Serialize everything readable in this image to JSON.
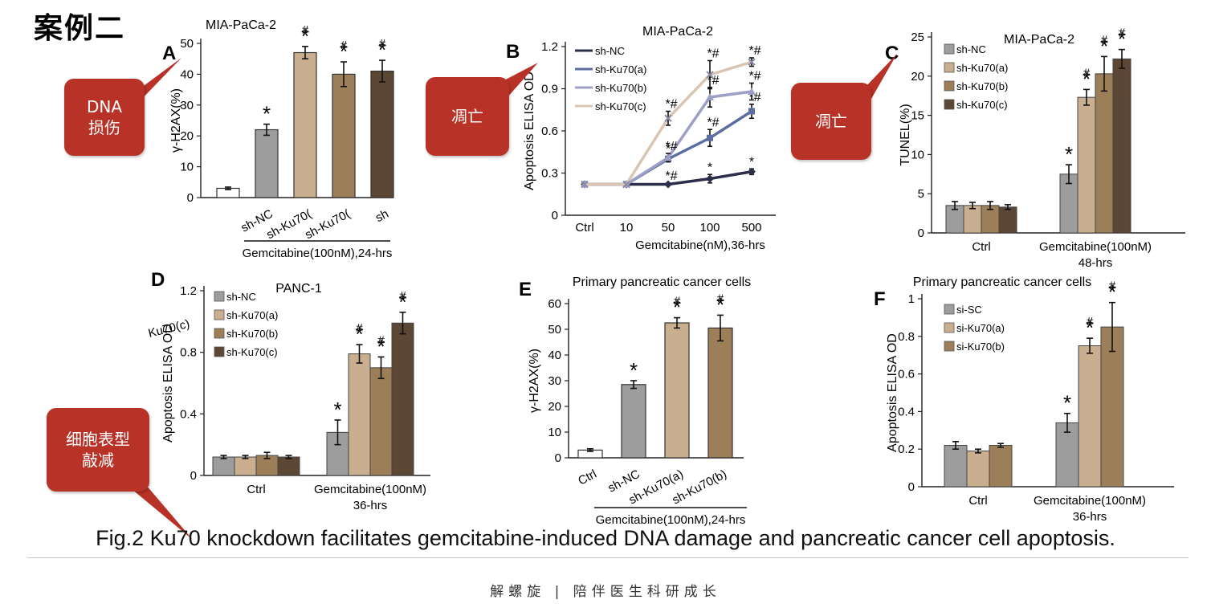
{
  "page_title": "案例二",
  "callouts": [
    {
      "id": "callout-dna-damage",
      "text": "DNA\n损伤"
    },
    {
      "id": "callout-apoptosis-b",
      "text": "凋亡"
    },
    {
      "id": "callout-apoptosis-c",
      "text": "凋亡"
    },
    {
      "id": "callout-phenotype",
      "text": "细胞表型\n敲减"
    }
  ],
  "colors": {
    "white": "#ffffff",
    "gray": "#9d9d9d",
    "tan": "#c9af8f",
    "brown": "#9c7e58",
    "dark": "#5c4634",
    "navy": "#2c2e4a",
    "blue": "#5c6ea0",
    "lilac": "#9d9fc6",
    "beige": "#d8c5b4",
    "callout": "#b83227"
  },
  "caption": "Fig.2 Ku70 knockdown facilitates gemcitabine-induced DNA damage and pancreatic cancer cell apoptosis.",
  "footer": "解螺旋 | 陪伴医生科研成长",
  "chart_data": [
    {
      "panel": "A",
      "type": "bar",
      "title": "MIA-PaCa-2",
      "ylabel": "γ-H2AX(%)",
      "xlabel": "Gemcitabine(100nM),24-hrs",
      "ylim": [
        0,
        50
      ],
      "yticks": [
        0,
        10,
        20,
        30,
        40,
        50
      ],
      "categories": [
        "",
        "sh-NC",
        "sh-Ku70(",
        "sh-Ku70(",
        "sh"
      ],
      "values": [
        3,
        22,
        47,
        40,
        41
      ],
      "errors": [
        0.4,
        1.8,
        2,
        4,
        3.5
      ],
      "colors": [
        "#ffffff",
        "#9d9d9d",
        "#c9af8f",
        "#9c7e58",
        "#5c4634"
      ],
      "marks": [
        "",
        "*",
        "*#",
        "*#",
        "*#"
      ]
    },
    {
      "panel": "B",
      "type": "line",
      "title": "MIA-PaCa-2",
      "ylabel": "Apoptosis ELISA OD",
      "xlabel": "Gemcitabine(nM),36-hrs",
      "x": [
        "Ctrl",
        "10",
        "50",
        "100",
        "500"
      ],
      "ylim": [
        0,
        1.2
      ],
      "yticks": [
        0,
        0.3,
        0.6,
        0.9,
        1.2
      ],
      "series": [
        {
          "name": "sh-NC",
          "values": [
            0.22,
            0.22,
            0.22,
            0.26,
            0.31
          ],
          "errors": [
            0.01,
            0.01,
            0.01,
            0.03,
            0.02
          ],
          "color": "#2c2e4a",
          "marker": "diamond",
          "marks": [
            "",
            "",
            "*#",
            "*",
            "*"
          ]
        },
        {
          "name": "sh-Ku70(a)",
          "values": [
            0.22,
            0.22,
            0.4,
            0.55,
            0.74
          ],
          "errors": [
            0.01,
            0.01,
            0.02,
            0.06,
            0.05
          ],
          "color": "#5c6ea0",
          "marker": "square",
          "marks": [
            "",
            "",
            "*",
            "*#",
            "*#"
          ]
        },
        {
          "name": "sh-Ku70(b)",
          "values": [
            0.22,
            0.22,
            0.41,
            0.84,
            0.88
          ],
          "errors": [
            0.01,
            0.01,
            0.03,
            0.07,
            0.06
          ],
          "color": "#9d9fc6",
          "marker": "triangle",
          "marks": [
            "",
            "",
            "*#",
            "*#",
            "*#"
          ]
        },
        {
          "name": "sh-Ku70(c)",
          "values": [
            0.22,
            0.22,
            0.69,
            1.0,
            1.09
          ],
          "errors": [
            0.01,
            0.01,
            0.05,
            0.1,
            0.03
          ],
          "color": "#d8c5b4",
          "marker": "x",
          "marks": [
            "",
            "",
            "*#",
            "*#",
            "*#"
          ]
        }
      ]
    },
    {
      "panel": "C",
      "type": "bar",
      "title": "MIA-PaCa-2",
      "ylabel": "TUNEL(%)",
      "groups": [
        "Ctrl",
        "Gemcitabine(100nM)\n48-hrs"
      ],
      "ylim": [
        0,
        25
      ],
      "yticks": [
        0,
        5,
        10,
        15,
        20,
        25
      ],
      "series": [
        {
          "name": "sh-NC",
          "color": "#9d9d9d",
          "values": [
            3.5,
            7.5
          ],
          "errors": [
            0.5,
            1.2
          ],
          "marks": [
            "",
            "*"
          ]
        },
        {
          "name": "sh-Ku70(a)",
          "color": "#c9af8f",
          "values": [
            3.5,
            17.3
          ],
          "errors": [
            0.4,
            1.0
          ],
          "marks": [
            "",
            "*#"
          ]
        },
        {
          "name": "sh-Ku70(b)",
          "color": "#9c7e58",
          "values": [
            3.5,
            20.3
          ],
          "errors": [
            0.5,
            2.2
          ],
          "marks": [
            "",
            "*#"
          ]
        },
        {
          "name": "sh-Ku70(c)",
          "color": "#5c4634",
          "values": [
            3.3,
            22.2
          ],
          "errors": [
            0.3,
            1.2
          ],
          "marks": [
            "",
            "*#"
          ]
        }
      ]
    },
    {
      "panel": "D",
      "type": "bar",
      "title": "PANC-1",
      "ylabel": "Apoptosis ELISA OD",
      "extra_label": "Ku70(c)",
      "groups": [
        "Ctrl",
        "Gemcitabine(100nM)\n36-hrs"
      ],
      "ylim": [
        0,
        1.2
      ],
      "yticks": [
        0,
        0.4,
        0.8,
        1.2
      ],
      "series": [
        {
          "name": "sh-NC",
          "color": "#9d9d9d",
          "values": [
            0.12,
            0.28
          ],
          "errors": [
            0.01,
            0.08
          ],
          "marks": [
            "",
            "*"
          ]
        },
        {
          "name": "sh-Ku70(a)",
          "color": "#c9af8f",
          "values": [
            0.12,
            0.79
          ],
          "errors": [
            0.01,
            0.06
          ],
          "marks": [
            "",
            "*#"
          ]
        },
        {
          "name": "sh-Ku70(b)",
          "color": "#9c7e58",
          "values": [
            0.13,
            0.7
          ],
          "errors": [
            0.02,
            0.07
          ],
          "marks": [
            "",
            "*#"
          ]
        },
        {
          "name": "sh-Ku70(c)",
          "color": "#5c4634",
          "values": [
            0.12,
            0.99
          ],
          "errors": [
            0.01,
            0.07
          ],
          "marks": [
            "",
            "*#"
          ]
        }
      ]
    },
    {
      "panel": "E",
      "type": "bar",
      "title": "Primary pancreatic cancer cells",
      "ylabel": "γ-H2AX(%)",
      "xlabel": "Gemcitabine(100nM),24-hrs",
      "ylim": [
        0,
        60
      ],
      "yticks": [
        0,
        10,
        20,
        30,
        40,
        50,
        60
      ],
      "categories": [
        "Ctrl",
        "sh-NC",
        "sh-Ku70(a)",
        "sh-Ku70(b)"
      ],
      "values": [
        3,
        28.5,
        52.5,
        50.5
      ],
      "errors": [
        0.5,
        1.5,
        2,
        5
      ],
      "colors": [
        "#ffffff",
        "#9d9d9d",
        "#c9af8f",
        "#9c7e58"
      ],
      "marks": [
        "",
        "*",
        "*#",
        "*#"
      ]
    },
    {
      "panel": "F",
      "type": "bar",
      "title": "Primary pancreatic cancer cells",
      "ylabel": "Apoptosis ELISA OD",
      "groups": [
        "Ctrl",
        "Gemcitabine(100nM)\n36-hrs"
      ],
      "ylim": [
        0,
        1
      ],
      "yticks": [
        0,
        0.2,
        0.4,
        0.6,
        0.8,
        1
      ],
      "series": [
        {
          "name": "si-SC",
          "color": "#9d9d9d",
          "values": [
            0.22,
            0.34
          ],
          "errors": [
            0.02,
            0.05
          ],
          "marks": [
            "",
            "*"
          ]
        },
        {
          "name": "si-Ku70(a)",
          "color": "#c9af8f",
          "values": [
            0.19,
            0.75
          ],
          "errors": [
            0.01,
            0.04
          ],
          "marks": [
            "",
            "*#"
          ]
        },
        {
          "name": "si-Ku70(b)",
          "color": "#9c7e58",
          "values": [
            0.22,
            0.85
          ],
          "errors": [
            0.01,
            0.13
          ],
          "marks": [
            "",
            "*#"
          ]
        }
      ]
    }
  ]
}
